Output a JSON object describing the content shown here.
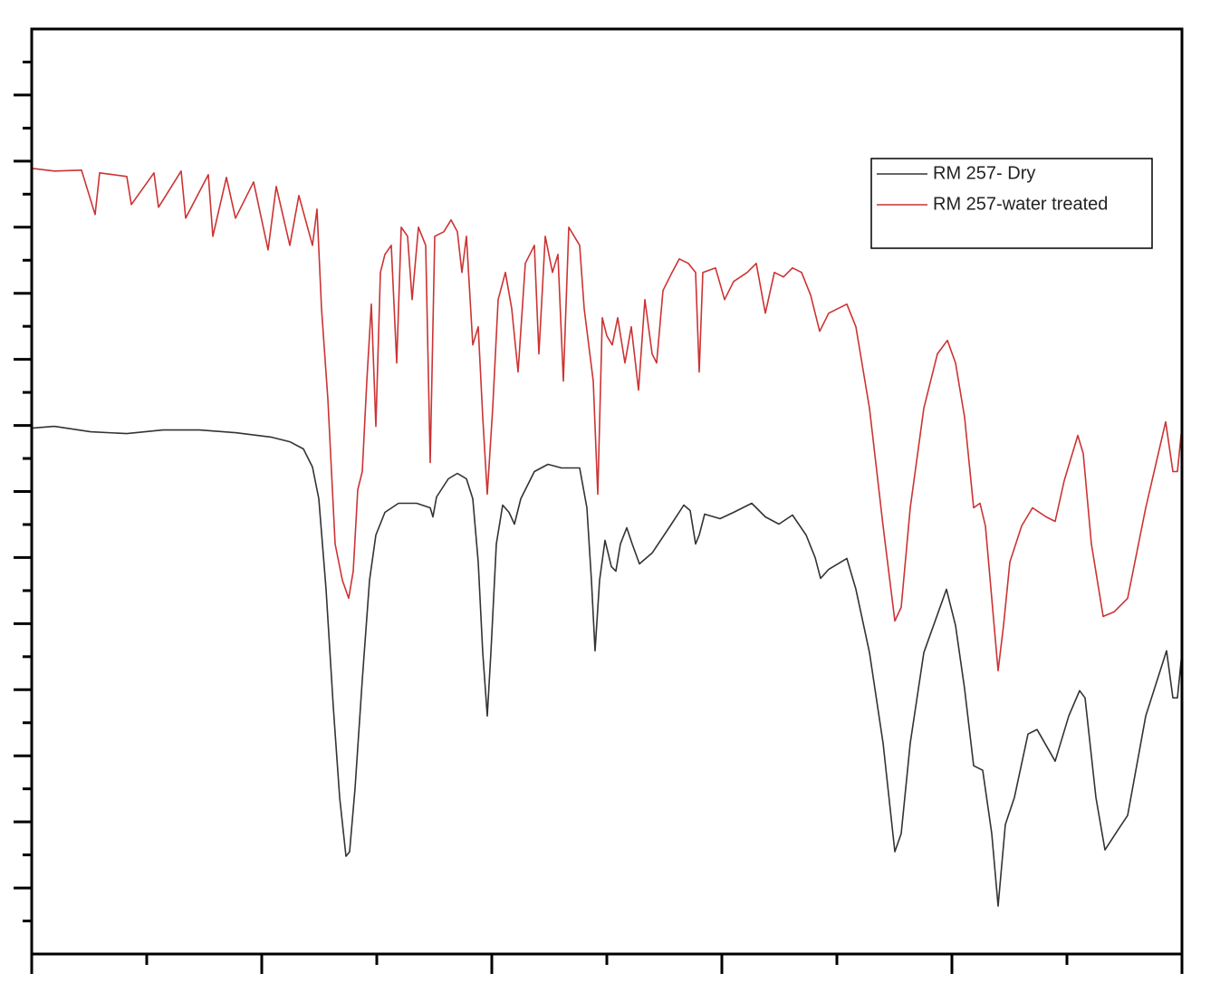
{
  "chart_data": {
    "type": "line",
    "xlim": [
      0,
      1270
    ],
    "ylim": [
      0,
      1022
    ],
    "xticks": [
      0,
      127,
      254,
      381,
      508,
      635,
      762,
      889,
      1016,
      1143,
      1270
    ],
    "yticks": [
      36.5,
      73,
      109.5,
      146,
      182.5,
      219,
      255.5,
      292,
      328.5,
      365,
      401.5,
      438,
      474.5,
      511,
      547.5,
      584,
      620.5,
      657,
      693.5,
      730,
      766.5,
      803,
      839.5,
      876,
      912.5,
      949,
      985.5
    ],
    "legend": "upper right",
    "series": [
      {
        "name": "RM 257- Dry",
        "color": "#333333",
        "x": [
          0,
          25,
          65,
          105,
          145,
          185,
          225,
          265,
          285,
          300,
          310,
          317,
          325,
          333,
          340,
          347,
          351,
          357,
          365,
          373,
          380,
          390,
          405,
          425,
          440,
          443,
          447,
          460,
          470,
          480,
          487,
          493,
          498,
          503,
          507,
          513,
          520,
          527,
          533,
          540,
          555,
          570,
          585,
          605,
          613,
          618,
          622,
          627,
          633,
          640,
          645,
          650,
          657,
          663,
          671,
          685,
          705,
          720,
          727,
          733,
          737,
          743,
          760,
          775,
          795,
          810,
          825,
          840,
          855,
          865,
          871,
          880,
          900,
          910,
          925,
          940,
          953,
          960,
          970,
          985,
          1010,
          1020,
          1030,
          1040,
          1050,
          1060,
          1067,
          1075,
          1085,
          1100,
          1110,
          1130,
          1145,
          1157,
          1163,
          1175,
          1185,
          1200,
          1210,
          1230,
          1253,
          1260,
          1265,
          1270
        ],
        "values": [
          581,
          583,
          577,
          575,
          579,
          579,
          576,
          571,
          566,
          558,
          538,
          503,
          403,
          273,
          173,
          108,
          113,
          183,
          303,
          413,
          463,
          488,
          498,
          498,
          493,
          483,
          505,
          525,
          531,
          525,
          503,
          433,
          333,
          263,
          333,
          453,
          496,
          488,
          475,
          503,
          533,
          541,
          537,
          537,
          493,
          413,
          335,
          413,
          457,
          428,
          423,
          453,
          471,
          453,
          431,
          443,
          473,
          496,
          490,
          453,
          463,
          486,
          481,
          488,
          498,
          483,
          475,
          485,
          463,
          438,
          415,
          425,
          437,
          403,
          333,
          233,
          113,
          133,
          233,
          333,
          403,
          363,
          293,
          208,
          203,
          133,
          53,
          143,
          173,
          243,
          248,
          213,
          263,
          291,
          283,
          173,
          115,
          138,
          153,
          263,
          335,
          283,
          283,
          333
        ]
      },
      {
        "name": "RM 257-water treated",
        "color": "#cc3333",
        "x": [
          0,
          25,
          55,
          70,
          75,
          105,
          110,
          135,
          140,
          165,
          170,
          195,
          200,
          215,
          225,
          245,
          261,
          270,
          285,
          295,
          310,
          315,
          320,
          327,
          335,
          343,
          350,
          355,
          360,
          365,
          370,
          375,
          380,
          385,
          390,
          397,
          403,
          408,
          415,
          420,
          427,
          435,
          440,
          445,
          455,
          463,
          470,
          475,
          480,
          487,
          493,
          498,
          503,
          509,
          515,
          523,
          530,
          537,
          545,
          555,
          560,
          567,
          575,
          581,
          587,
          593,
          599,
          605,
          610,
          615,
          620,
          625,
          630,
          635,
          641,
          647,
          655,
          662,
          670,
          677,
          685,
          690,
          697,
          707,
          715,
          725,
          733,
          737,
          741,
          755,
          765,
          775,
          790,
          800,
          810,
          820,
          830,
          840,
          850,
          860,
          870,
          880,
          900,
          910,
          925,
          940,
          953,
          960,
          970,
          985,
          1000,
          1011,
          1020,
          1030,
          1040,
          1047,
          1053,
          1060,
          1067,
          1073,
          1080,
          1093,
          1105,
          1120,
          1130,
          1140,
          1155,
          1161,
          1170,
          1183,
          1195,
          1210,
          1230,
          1252,
          1260,
          1265,
          1270
        ],
        "values": [
          868,
          865,
          866,
          817,
          863,
          859,
          828,
          863,
          825,
          865,
          813,
          861,
          793,
          858,
          813,
          853,
          778,
          848,
          783,
          838,
          783,
          823,
          713,
          613,
          453,
          413,
          393,
          423,
          513,
          533,
          633,
          718,
          583,
          753,
          773,
          783,
          653,
          803,
          793,
          723,
          803,
          783,
          543,
          793,
          798,
          811,
          798,
          753,
          793,
          673,
          693,
          593,
          508,
          603,
          723,
          753,
          713,
          643,
          763,
          783,
          663,
          793,
          753,
          773,
          633,
          803,
          793,
          783,
          713,
          673,
          633,
          508,
          703,
          683,
          673,
          703,
          653,
          693,
          623,
          723,
          663,
          653,
          733,
          753,
          768,
          763,
          753,
          643,
          753,
          758,
          723,
          743,
          753,
          763,
          708,
          753,
          748,
          758,
          753,
          728,
          688,
          708,
          718,
          693,
          603,
          473,
          368,
          383,
          493,
          603,
          663,
          678,
          653,
          593,
          493,
          498,
          473,
          393,
          313,
          363,
          433,
          473,
          493,
          483,
          478,
          523,
          573,
          553,
          453,
          373,
          378,
          393,
          493,
          588,
          533,
          533,
          583
        ]
      }
    ]
  }
}
